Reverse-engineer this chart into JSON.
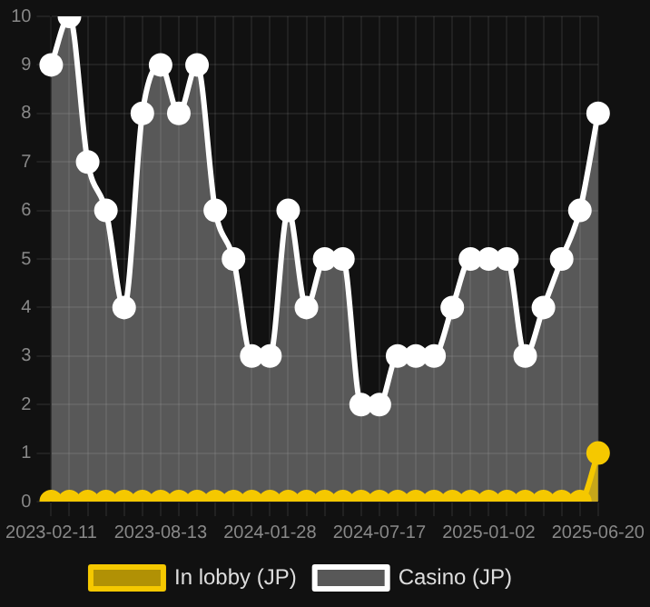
{
  "chart_data": {
    "type": "area",
    "categories": [
      "2023-02-11",
      null,
      null,
      null,
      null,
      null,
      "2023-08-13",
      null,
      null,
      null,
      null,
      null,
      "2024-01-28",
      null,
      null,
      null,
      null,
      null,
      "2024-07-17",
      null,
      null,
      null,
      null,
      null,
      "2025-01-02",
      null,
      null,
      null,
      null,
      null,
      "2025-06-20"
    ],
    "series": [
      {
        "name": "In lobby (JP)",
        "color": "#f5c800",
        "values": [
          0,
          0,
          0,
          0,
          0,
          0,
          0,
          0,
          0,
          0,
          0,
          0,
          0,
          0,
          0,
          0,
          0,
          0,
          0,
          0,
          0,
          0,
          0,
          0,
          0,
          0,
          0,
          0,
          0,
          0,
          1
        ]
      },
      {
        "name": "Casino (JP)",
        "color": "#ffffff",
        "values": [
          9,
          10,
          7,
          6,
          4,
          8,
          9,
          8,
          9,
          6,
          5,
          3,
          3,
          6,
          4,
          5,
          5,
          2,
          2,
          3,
          3,
          3,
          4,
          5,
          5,
          5,
          3,
          4,
          5,
          6,
          8
        ]
      }
    ],
    "ylim": [
      0,
      10
    ],
    "yticks": [
      0,
      1,
      2,
      3,
      4,
      5,
      6,
      7,
      8,
      9,
      10
    ],
    "grid": true,
    "legend": "bottom",
    "marker": "circle",
    "line_style": "solid"
  }
}
